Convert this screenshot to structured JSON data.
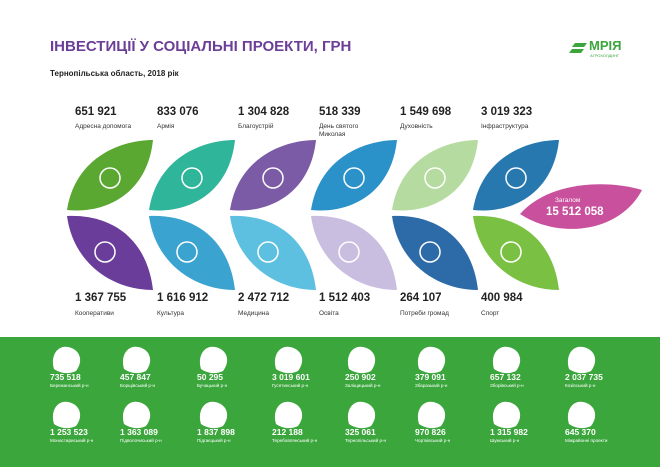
{
  "header": {
    "title": "ІНВЕСТИЦІЇ У СОЦІАЛЬНІ ПРОЕКТИ, ГРН",
    "subtitle": "Тернопільська область, 2018 рік",
    "logo": "МРІЯ",
    "logo_caption": "АГРОХОЛДИНГ"
  },
  "top": [
    {
      "value": "651 921",
      "label": "Адресна допомога"
    },
    {
      "value": "833 076",
      "label": "Армія"
    },
    {
      "value": "1 304 828",
      "label": "Благоустрій"
    },
    {
      "value": "518 339",
      "label": "День святого Миколая"
    },
    {
      "value": "1 549 698",
      "label": "Духовність"
    },
    {
      "value": "3 019 323",
      "label": "Інфраструктура"
    }
  ],
  "bottom": [
    {
      "value": "1 367 755",
      "label": "Кооперативи"
    },
    {
      "value": "1 616 912",
      "label": "Культура"
    },
    {
      "value": "2 472 712",
      "label": "Медицина"
    },
    {
      "value": "1 512 403",
      "label": "Освіта"
    },
    {
      "value": "264 107",
      "label": "Потреби громад"
    },
    {
      "value": "400 984",
      "label": "Спорт"
    }
  ],
  "total": {
    "label": "Загалом",
    "value": "15 512 058"
  },
  "districts": [
    {
      "value": "735 518",
      "name": "Бережанський р-н"
    },
    {
      "value": "457 847",
      "name": "Борщівський р-н"
    },
    {
      "value": "50 295",
      "name": "Бучацький р-н"
    },
    {
      "value": "3 019 601",
      "name": "Гусятинський р-н"
    },
    {
      "value": "250 902",
      "name": "Заліщицький р-н"
    },
    {
      "value": "379 091",
      "name": "Збаразький р-н"
    },
    {
      "value": "657 132",
      "name": "Зборівський р-н"
    },
    {
      "value": "2 037 735",
      "name": "Козівський р-н"
    },
    {
      "value": "1 253 523",
      "name": "Монастириський р-н"
    },
    {
      "value": "1 363 089",
      "name": "Підволочиський р-н"
    },
    {
      "value": "1 837 898",
      "name": "Підгаєцький р-н"
    },
    {
      "value": "212 188",
      "name": "Теребовлянський р-н"
    },
    {
      "value": "325 061",
      "name": "Тернопільський р-н"
    },
    {
      "value": "970 826",
      "name": "Чортківський р-н"
    },
    {
      "value": "1 315 982",
      "name": "Шумський р-н"
    },
    {
      "value": "645 370",
      "name": "Міжрайонні проекти"
    }
  ]
}
